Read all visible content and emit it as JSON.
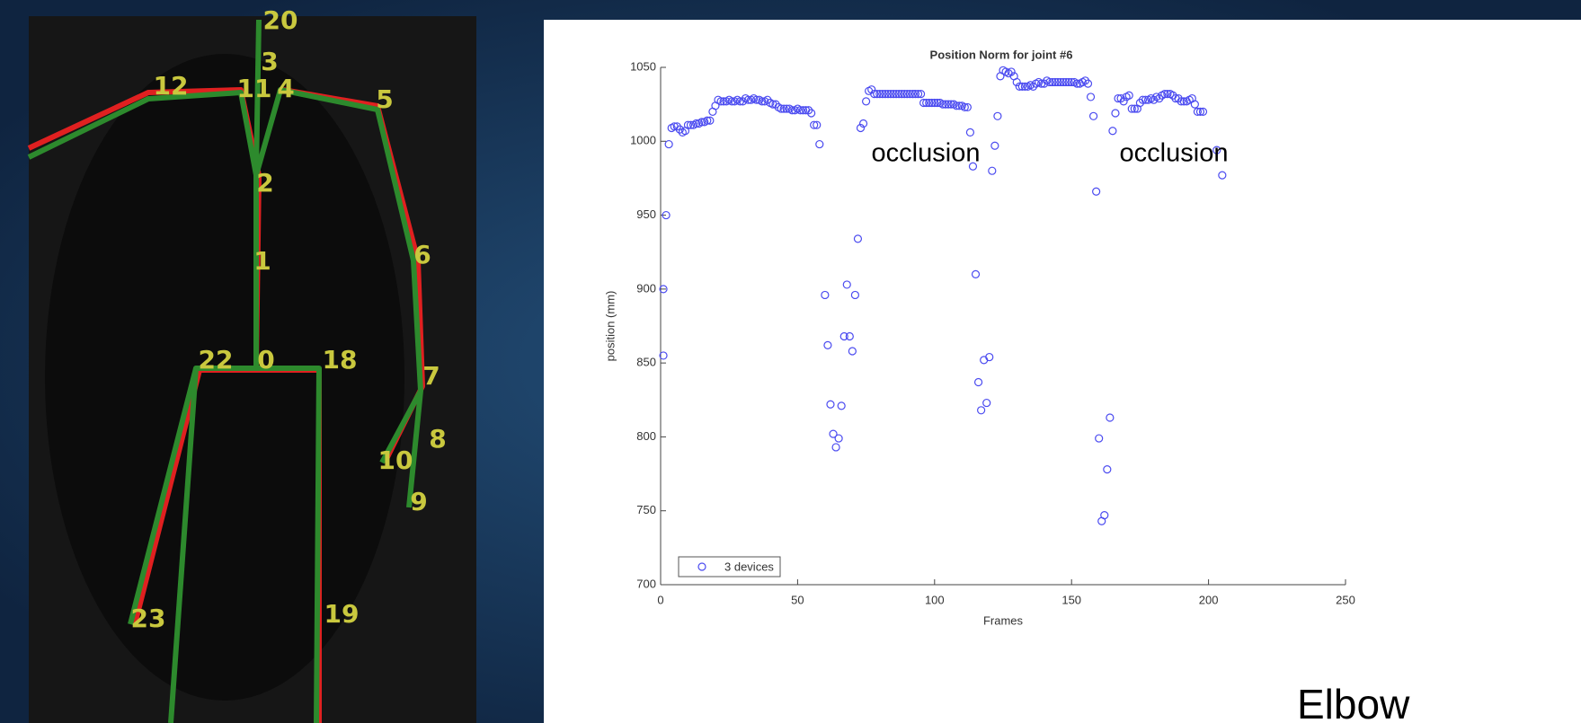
{
  "chart_data": {
    "type": "scatter",
    "title": "Position Norm for joint #6",
    "x_label": "Frames",
    "y_label": "position (mm)",
    "series": [
      {
        "name": "3 devices",
        "color": "#4b4bf0",
        "x": [
          1,
          1,
          2,
          3,
          4,
          5,
          6,
          7,
          8,
          9,
          10,
          11,
          12,
          13,
          14,
          15,
          16,
          17,
          18,
          19,
          20,
          21,
          22,
          23,
          24,
          25,
          26,
          27,
          28,
          29,
          30,
          31,
          32,
          33,
          34,
          35,
          36,
          37,
          38,
          39,
          40,
          41,
          42,
          43,
          44,
          45,
          46,
          47,
          48,
          49,
          50,
          51,
          52,
          53,
          54,
          55,
          56,
          57,
          58,
          60,
          61,
          62,
          63,
          64,
          65,
          66,
          67,
          68,
          69,
          70,
          71,
          72,
          73,
          74,
          75,
          76,
          77,
          78,
          79,
          80,
          81,
          82,
          83,
          84,
          85,
          86,
          87,
          88,
          89,
          90,
          91,
          92,
          93,
          94,
          95,
          96,
          97,
          98,
          99,
          100,
          101,
          102,
          103,
          104,
          105,
          106,
          107,
          108,
          109,
          110,
          111,
          112,
          113,
          114,
          115,
          116,
          117,
          118,
          119,
          120,
          121,
          122,
          123,
          124,
          125,
          126,
          127,
          128,
          129,
          130,
          131,
          132,
          133,
          134,
          135,
          136,
          137,
          138,
          139,
          140,
          141,
          142,
          143,
          144,
          145,
          146,
          147,
          148,
          149,
          150,
          151,
          152,
          153,
          154,
          155,
          156,
          157,
          158,
          159,
          160,
          161,
          162,
          163,
          164,
          165,
          166,
          167,
          168,
          169,
          170,
          171,
          172,
          173,
          174,
          175,
          176,
          177,
          178,
          179,
          180,
          181,
          182,
          183,
          184,
          185,
          186,
          187,
          188,
          189,
          190,
          191,
          192,
          193,
          194,
          195,
          196,
          197,
          198,
          203,
          205
        ],
        "values": [
          855,
          900,
          950,
          998,
          1009,
          1010,
          1010,
          1008,
          1006,
          1007,
          1011,
          1011,
          1011,
          1012,
          1012,
          1013,
          1013,
          1014,
          1014,
          1020,
          1024,
          1028,
          1027,
          1027,
          1027,
          1028,
          1027,
          1027,
          1028,
          1027,
          1027,
          1029,
          1028,
          1028,
          1029,
          1028,
          1028,
          1027,
          1027,
          1028,
          1026,
          1025,
          1025,
          1023,
          1022,
          1022,
          1022,
          1022,
          1021,
          1021,
          1022,
          1021,
          1021,
          1021,
          1021,
          1019,
          1011,
          1011,
          998,
          896,
          862,
          822,
          802,
          793,
          799,
          821,
          868,
          903,
          868,
          858,
          896,
          934,
          1009,
          1012,
          1027,
          1034,
          1035,
          1032,
          1032,
          1032,
          1032,
          1032,
          1032,
          1032,
          1032,
          1032,
          1032,
          1032,
          1032,
          1032,
          1032,
          1032,
          1032,
          1032,
          1032,
          1026,
          1026,
          1026,
          1026,
          1026,
          1026,
          1026,
          1025,
          1025,
          1025,
          1025,
          1025,
          1024,
          1024,
          1024,
          1023,
          1023,
          1006,
          983,
          910,
          837,
          818,
          852,
          823,
          854,
          980,
          997,
          1017,
          1044,
          1048,
          1047,
          1046,
          1047,
          1044,
          1040,
          1037,
          1037,
          1037,
          1037,
          1038,
          1037,
          1039,
          1040,
          1039,
          1039,
          1041,
          1040,
          1040,
          1040,
          1040,
          1040,
          1040,
          1040,
          1040,
          1040,
          1040,
          1039,
          1039,
          1040,
          1041,
          1039,
          1030,
          1017,
          966,
          799,
          743,
          747,
          778,
          813,
          1007,
          1019,
          1029,
          1029,
          1027,
          1030,
          1031,
          1022,
          1022,
          1022,
          1026,
          1028,
          1028,
          1028,
          1029,
          1028,
          1030,
          1029,
          1031,
          1032,
          1032,
          1032,
          1031,
          1029,
          1029,
          1027,
          1027,
          1027,
          1028,
          1029,
          1025,
          1020,
          1020,
          1020,
          994,
          977
        ]
      }
    ],
    "xlim": [
      0,
      250
    ],
    "xticks": [
      0,
      50,
      100,
      150,
      200,
      250
    ],
    "ylim": [
      700,
      1050
    ],
    "yticks": [
      700,
      750,
      800,
      850,
      900,
      950,
      1000,
      1050
    ],
    "legend": "lower left",
    "annotations": [
      "occlusion",
      "occlusion"
    ]
  },
  "skeleton_labels": [
    "20",
    "3",
    "12",
    "11",
    "4",
    "5",
    "2",
    "1",
    "6",
    "22",
    "0",
    "18",
    "7",
    "8",
    "10",
    "9",
    "23",
    "19"
  ],
  "caption": "Elbow"
}
